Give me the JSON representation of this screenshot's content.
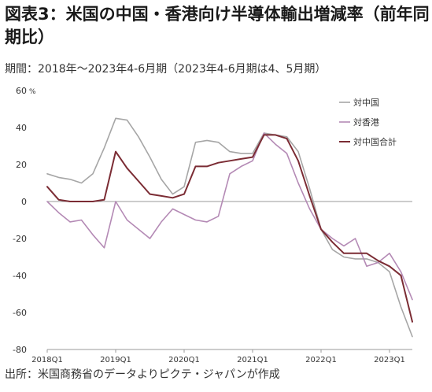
{
  "title": "図表3：米国の中国・香港向け半導体輸出増減率（前年同期比）",
  "subtitle": "期間：2018年～2023年4-6月期（2023年4-6月期は4、5月期）",
  "source": "出所：米国商務省のデータよりピクテ・ジャパンが作成",
  "chart_data": {
    "type": "line",
    "y_unit": "%",
    "ylim": [
      -80,
      60
    ],
    "yticks": [
      60,
      40,
      20,
      0,
      -20,
      -40,
      -60,
      -80
    ],
    "x_tick_labels": [
      "2018Q1",
      "2019Q1",
      "2020Q1",
      "2021Q1",
      "2022Q1",
      "2023Q1"
    ],
    "x_tick_positions": [
      0,
      6,
      12,
      18,
      24,
      30
    ],
    "grid": false,
    "legend_position": "top-right",
    "series": [
      {
        "name": "対中国",
        "color": "#a6a6a6",
        "x": [
          0,
          1,
          2,
          3,
          4,
          5,
          6,
          7,
          8,
          9,
          10,
          11,
          12,
          13,
          14,
          15,
          16,
          17,
          18,
          19,
          20,
          21,
          22,
          23,
          24,
          25,
          26,
          27,
          28,
          29,
          30,
          31,
          32
        ],
        "values": [
          15,
          13,
          12,
          10,
          15,
          29,
          45,
          44,
          35,
          24,
          12,
          4,
          8,
          32,
          33,
          32,
          27,
          26,
          26,
          37,
          36,
          35,
          27,
          7,
          -15,
          -26,
          -30,
          -31,
          -31,
          -33,
          -38,
          -57,
          -73
        ]
      },
      {
        "name": "対香港",
        "color": "#b48ab5",
        "x": [
          0,
          1,
          2,
          3,
          4,
          5,
          6,
          7,
          8,
          9,
          10,
          11,
          12,
          13,
          14,
          15,
          16,
          17,
          18,
          19,
          20,
          21,
          22,
          23,
          24,
          25,
          26,
          27,
          28,
          29,
          30,
          31,
          32
        ],
        "values": [
          0,
          -6,
          -11,
          -10,
          -18,
          -25,
          0,
          -10,
          -15,
          -20,
          -11,
          -4,
          -7,
          -10,
          -11,
          -8,
          15,
          19,
          22,
          37,
          31,
          26,
          10,
          -4,
          -15,
          -20,
          -24,
          -20,
          -35,
          -33,
          -28,
          -38,
          -53
        ]
      },
      {
        "name": "対中国合計",
        "color": "#7b2c34",
        "x": [
          0,
          1,
          2,
          3,
          4,
          5,
          6,
          7,
          8,
          9,
          10,
          11,
          12,
          13,
          14,
          15,
          16,
          17,
          18,
          19,
          20,
          21,
          22,
          23,
          24,
          25,
          26,
          27,
          28,
          29,
          30,
          31,
          32
        ],
        "values": [
          8,
          1,
          0,
          0,
          0,
          1,
          27,
          18,
          11,
          4,
          3,
          2,
          4,
          19,
          19,
          21,
          22,
          23,
          24,
          36,
          36,
          34,
          22,
          3,
          -15,
          -22,
          -28,
          -28,
          -28,
          -32,
          -35,
          -40,
          -65
        ]
      }
    ]
  }
}
